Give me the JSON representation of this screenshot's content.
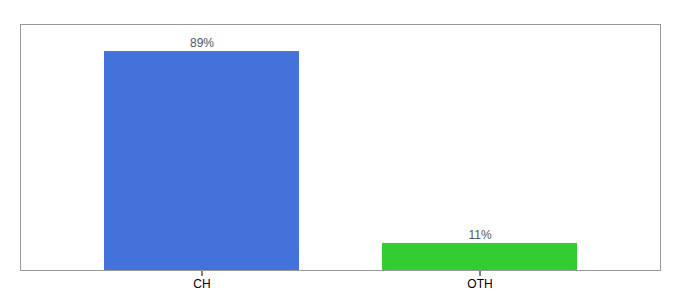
{
  "chart_data": {
    "type": "bar",
    "categories": [
      "CH",
      "OTH"
    ],
    "values": [
      89,
      11
    ],
    "colors": [
      "#4472db",
      "#33cc33"
    ],
    "value_labels": [
      "89%",
      "11%"
    ],
    "data_labels": true,
    "ylim": [
      0,
      100
    ],
    "tick_labels": "x",
    "grid": false
  }
}
